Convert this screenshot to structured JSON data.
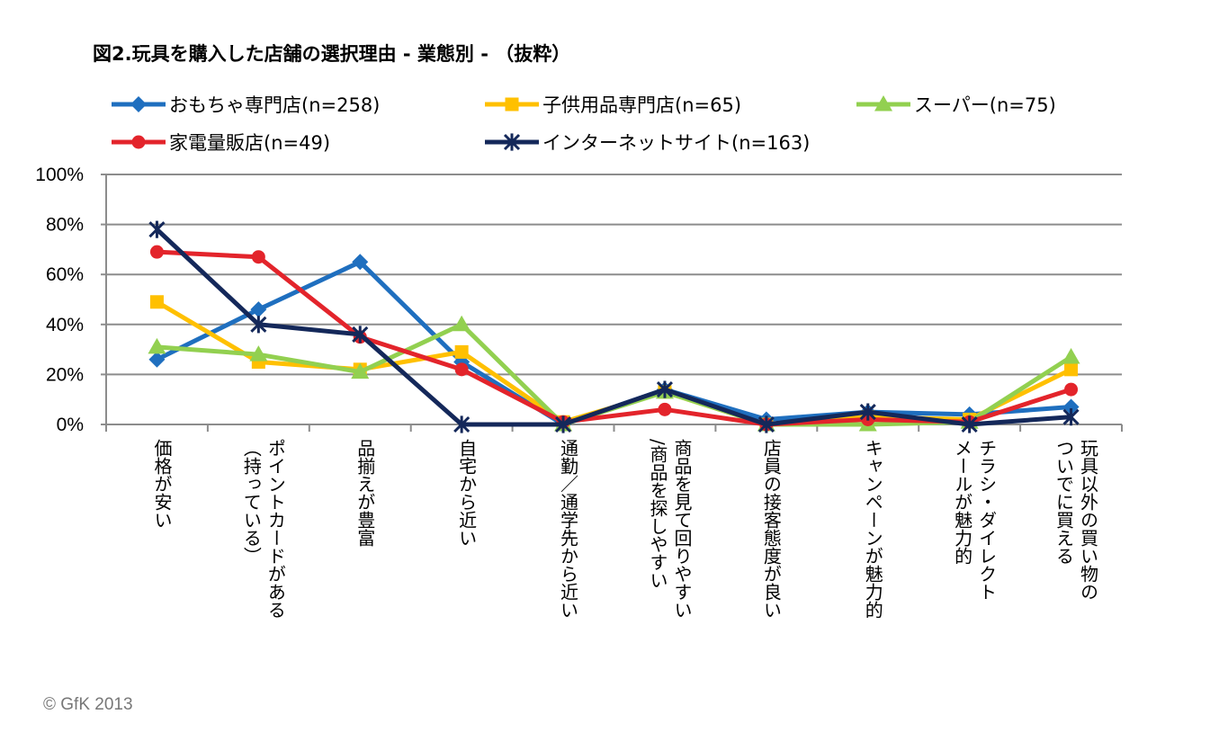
{
  "chart_data": {
    "type": "line",
    "title": "図2.玩具を購入した店舗の選択理由 - 業態別 - （抜粋）",
    "categories": [
      [
        "価格が安い"
      ],
      [
        "ポイントカードがある",
        "（持っている）"
      ],
      [
        "品揃えが豊富"
      ],
      [
        "自宅から近い"
      ],
      [
        "通勤／通学先から近い"
      ],
      [
        "商品を見て回りやすい",
        "/商品を探しやすい"
      ],
      [
        "店員の接客態度が良い"
      ],
      [
        "キャンペーンが魅力的"
      ],
      [
        "チラシ・ダイレクト",
        "メールが魅力的"
      ],
      [
        "玩具以外の買い物の",
        "ついでに買える"
      ]
    ],
    "y_ticks": [
      "0%",
      "20%",
      "40%",
      "60%",
      "80%",
      "100%"
    ],
    "ylim": [
      0,
      100
    ],
    "grid": true,
    "legend_position": "top",
    "series": [
      {
        "name": "おもちゃ専門店(n=258)",
        "color": "#1F6FBF",
        "marker": "diamond",
        "values": [
          26,
          46,
          65,
          25,
          0,
          14,
          2,
          5,
          4,
          7
        ]
      },
      {
        "name": "子供用品専門店(n=65)",
        "color": "#FFC000",
        "marker": "square",
        "values": [
          49,
          25,
          22,
          29,
          1,
          13,
          0,
          3,
          2,
          22
        ]
      },
      {
        "name": "スーパー(n=75)",
        "color": "#92D050",
        "marker": "triangle",
        "values": [
          31,
          28,
          21,
          40,
          0,
          13,
          0,
          0,
          1,
          27
        ]
      },
      {
        "name": "家電量販店(n=49)",
        "color": "#E3242B",
        "marker": "circle",
        "values": [
          69,
          67,
          35,
          22,
          1,
          6,
          0,
          2,
          1,
          14
        ]
      },
      {
        "name": "インターネットサイト(n=163)",
        "color": "#14285A",
        "marker": "star",
        "values": [
          78,
          40,
          36,
          0,
          0,
          14,
          0,
          5,
          0,
          3
        ]
      }
    ]
  },
  "footer": {
    "copyright": "© GfK 2013"
  }
}
